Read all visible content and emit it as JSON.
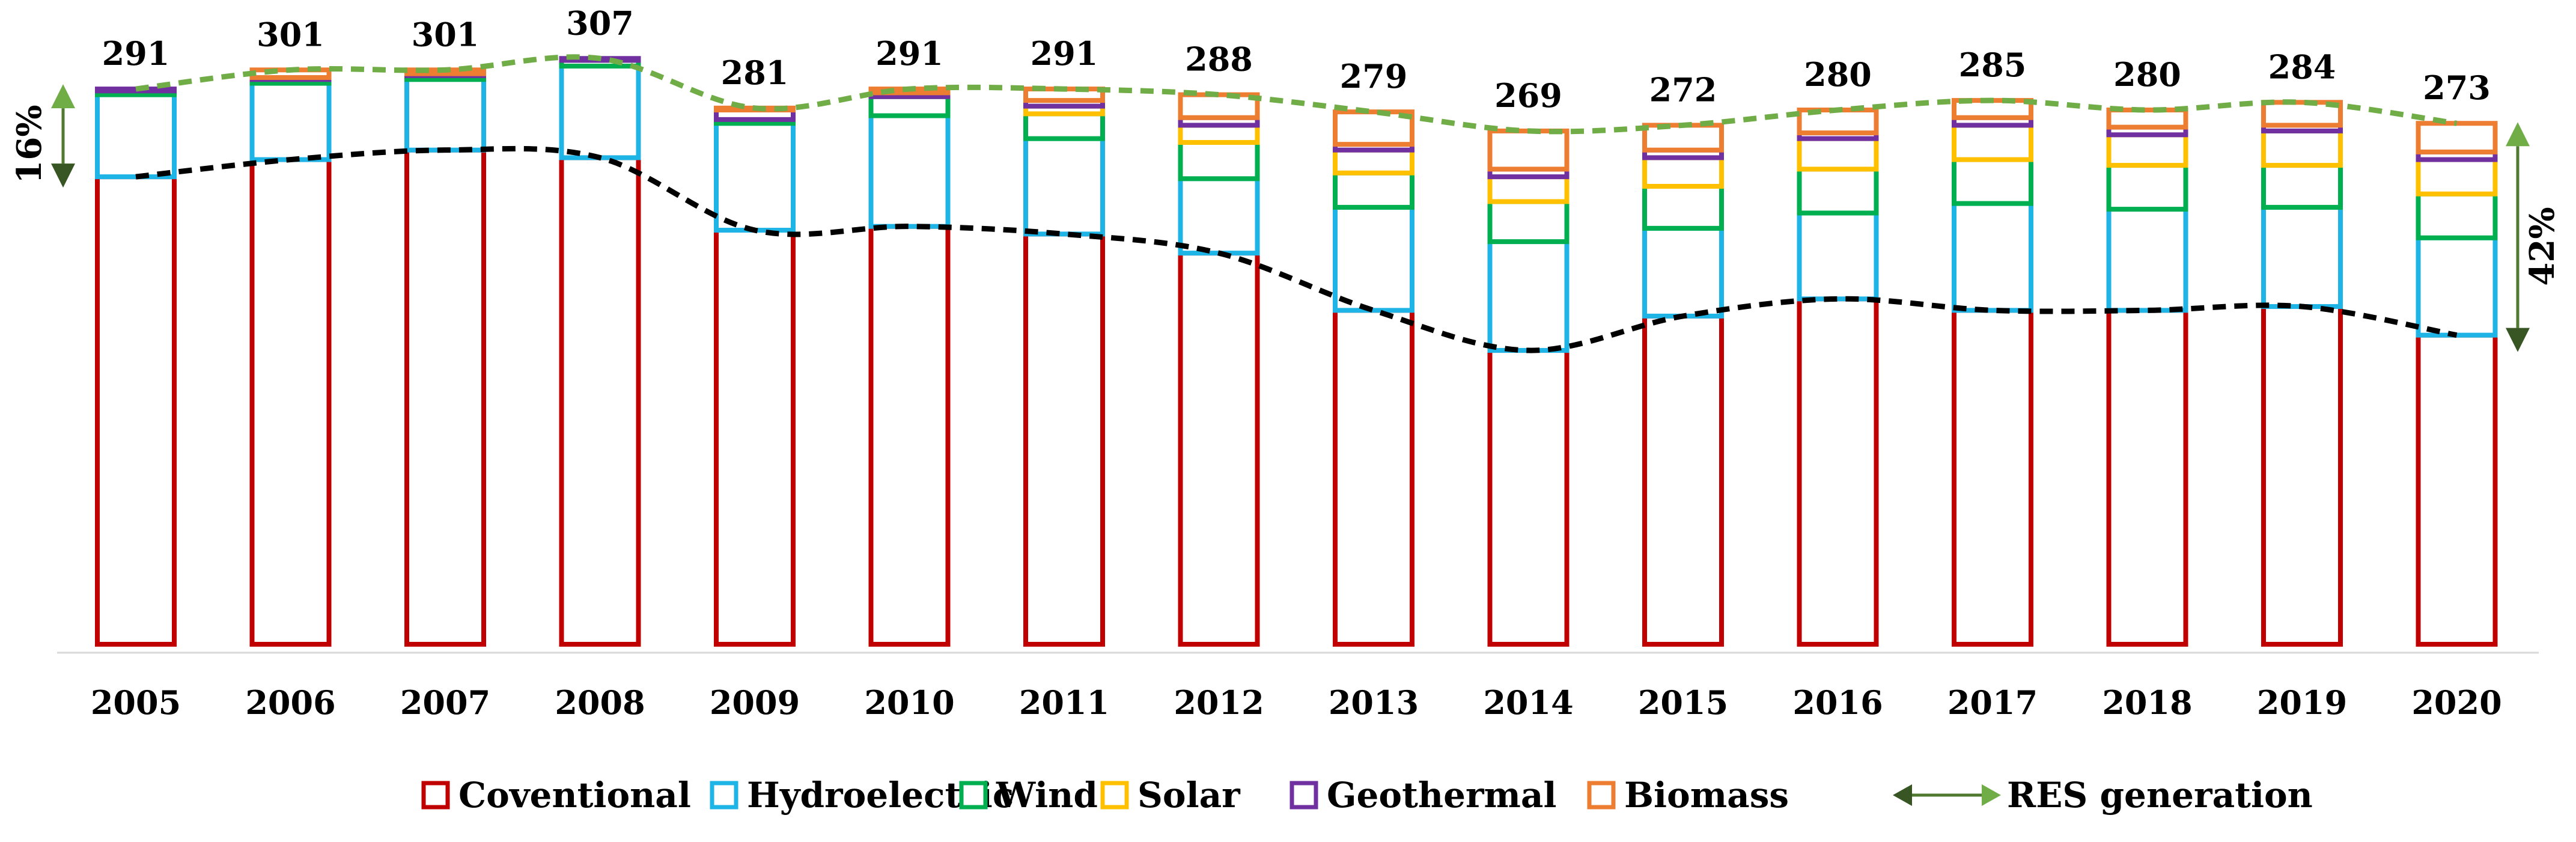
{
  "chart_data": {
    "type": "bar",
    "stacked": true,
    "title": "",
    "xlabel": "",
    "ylabel": "",
    "ylim": [
      0,
      330
    ],
    "grid": false,
    "legend_position": "bottom",
    "categories": [
      "2005",
      "2006",
      "2007",
      "2008",
      "2009",
      "2010",
      "2011",
      "2012",
      "2013",
      "2014",
      "2015",
      "2016",
      "2017",
      "2018",
      "2019",
      "2020"
    ],
    "totals": [
      291,
      301,
      301,
      307,
      281,
      291,
      291,
      288,
      279,
      269,
      272,
      280,
      285,
      280,
      284,
      273
    ],
    "series": [
      {
        "name": "Coventional",
        "color": "#c00000",
        "values": [
          245,
          254,
          259,
          255,
          217,
          219,
          215,
          205,
          175,
          154,
          172,
          181,
          175,
          175,
          177,
          162
        ]
      },
      {
        "name": "Hydroelectric",
        "color": "#1fb4e6",
        "values": [
          43,
          40,
          37,
          48,
          56,
          58,
          50,
          39,
          54,
          57,
          46,
          45,
          56,
          53,
          52,
          51
        ]
      },
      {
        "name": "Wind",
        "color": "#00b050",
        "values": [
          2,
          2,
          2,
          3,
          2,
          10,
          13,
          19,
          18,
          21,
          22,
          23,
          23,
          23,
          22,
          23
        ]
      },
      {
        "name": "Solar",
        "color": "#ffc000",
        "values": [
          0,
          0,
          0,
          0,
          0,
          0,
          4,
          9,
          12,
          13,
          15,
          16,
          18,
          16,
          18,
          18
        ]
      },
      {
        "name": "Geothermal",
        "color": "#7030a0",
        "values": [
          1,
          1,
          1,
          1,
          5,
          2,
          3,
          4,
          3,
          4,
          4,
          3,
          4,
          4,
          3,
          4
        ]
      },
      {
        "name": "Biomass",
        "color": "#ed7d31",
        "values": [
          0,
          4,
          2,
          0,
          1,
          2,
          6,
          12,
          17,
          20,
          13,
          12,
          9,
          9,
          12,
          15
        ]
      }
    ],
    "overlays": [
      {
        "name": "total_generation_line",
        "color": "#70ad47",
        "style": "dashed",
        "values": [
          291,
          301,
          301,
          307,
          281,
          291,
          291,
          288,
          279,
          269,
          272,
          280,
          285,
          280,
          284,
          273
        ]
      },
      {
        "name": "conventional_line",
        "color": "#000000",
        "style": "dashed",
        "values": [
          245,
          254,
          259,
          255,
          217,
          219,
          215,
          205,
          175,
          154,
          172,
          181,
          175,
          175,
          177,
          162
        ]
      }
    ],
    "annotations": [
      {
        "label": "16%",
        "at_category": "2005",
        "side": "left",
        "from": 245,
        "to": 291
      },
      {
        "label": "42%",
        "at_category": "2020",
        "side": "right",
        "from": 162,
        "to": 273
      }
    ],
    "legend_extra": {
      "label": "RES generation",
      "arrow_color_dark": "#375623",
      "arrow_color_light": "#70ad47"
    }
  }
}
